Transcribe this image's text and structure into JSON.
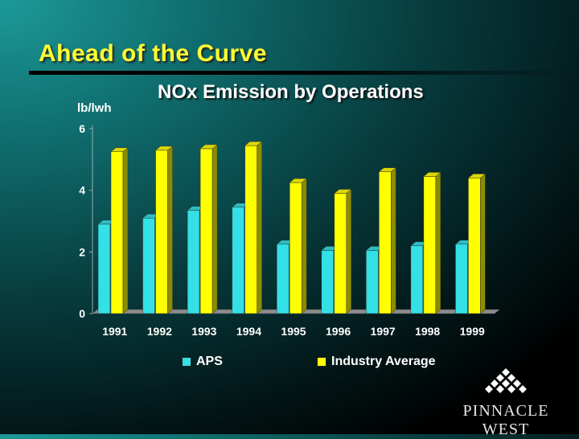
{
  "slide": {
    "title": "Ahead of the Curve"
  },
  "colors": {
    "aps": "#33e0e6",
    "industry": "#ffff00",
    "title": "#ffff33"
  },
  "chart_data": {
    "type": "bar",
    "title": "NOx Emission by Operations",
    "ylabel": "lb/lwh",
    "xlabel": "",
    "categories": [
      "1991",
      "1992",
      "1993",
      "1994",
      "1995",
      "1996",
      "1997",
      "1998",
      "1999"
    ],
    "series": [
      {
        "name": "APS",
        "values": [
          2.9,
          3.1,
          3.35,
          3.45,
          2.25,
          2.05,
          2.05,
          2.2,
          2.25
        ]
      },
      {
        "name": "Industry Average",
        "values": [
          5.25,
          5.3,
          5.35,
          5.45,
          4.25,
          3.9,
          4.6,
          4.45,
          4.4
        ]
      }
    ],
    "ylim": [
      0,
      6
    ],
    "yticks": [
      0,
      2,
      4,
      6
    ],
    "legend": "bottom",
    "grid": false
  },
  "logo": {
    "text": "PINNACLE WEST",
    "icon": "pinnacle-diamond-icon"
  }
}
